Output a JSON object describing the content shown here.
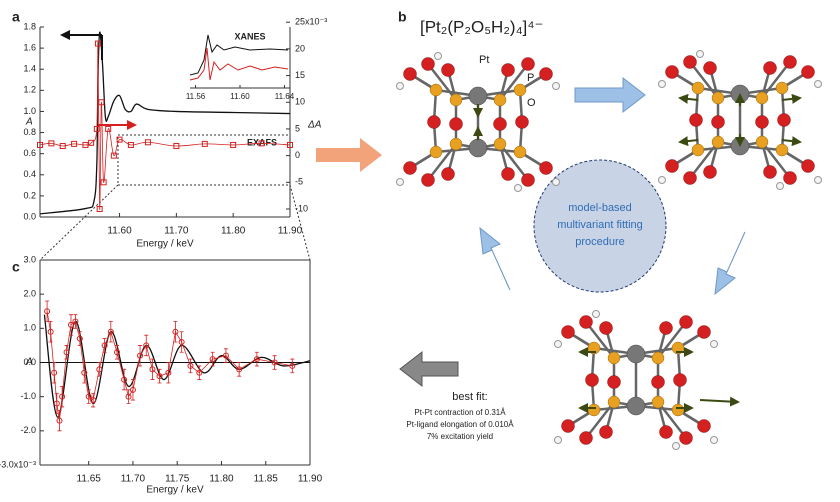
{
  "chart_data": [
    {
      "type": "line",
      "panel_label": "a",
      "x_label": "Energy / keV",
      "y_label": "A",
      "y2_label": "ΔA",
      "xlim": [
        11.46,
        11.9
      ],
      "xticks": [
        {
          "value": 11.6,
          "label": "11.60"
        },
        {
          "value": 11.7,
          "label": "11.70"
        },
        {
          "value": 11.8,
          "label": "11.80"
        },
        {
          "value": 11.9,
          "label": "11.90"
        }
      ],
      "ylim": [
        0,
        1.8
      ],
      "yticks": [
        {
          "value": 0,
          "label": "0.0"
        },
        0.2,
        0.4,
        0.6,
        0.8,
        {
          "value": 1,
          "label": "1.0"
        },
        1.2,
        1.4,
        1.6,
        1.8
      ],
      "y2lim": [
        -11.5,
        24.1
      ],
      "y2ticks": [
        -10,
        -5,
        0,
        5,
        10,
        15,
        20,
        {
          "value": 25,
          "label": "25x10⁻³"
        }
      ],
      "annotations": [
        "XANES",
        "EXAFS"
      ],
      "inset": {
        "xlim": [
          11.555,
          11.645
        ],
        "xticks": [
          {
            "value": 11.56,
            "label": "11.56"
          },
          {
            "value": 11.6,
            "label": "11.60"
          },
          {
            "value": 11.64,
            "label": "11.64"
          }
        ]
      },
      "series": [
        {
          "color": "#111111",
          "x": [
            11.46,
            11.54,
            11.555,
            11.56,
            11.562,
            11.565,
            11.57,
            11.575,
            11.58,
            11.59,
            11.6,
            11.61,
            11.62,
            11.63,
            11.65,
            11.7,
            11.8,
            11.9
          ],
          "values": [
            0.03,
            0.08,
            0.15,
            0.5,
            1.3,
            1.75,
            1.45,
            0.95,
            0.95,
            1.1,
            1.15,
            1.02,
            1.0,
            1.07,
            1.02,
            1.0,
            0.99,
            0.98
          ]
        },
        {
          "color": "#d62020",
          "axis": "y2",
          "marker": "square",
          "x": [
            11.46,
            11.48,
            11.5,
            11.52,
            11.54,
            11.55,
            11.56,
            11.562,
            11.565,
            11.568,
            11.572,
            11.58,
            11.59,
            11.6,
            11.62,
            11.65,
            11.7,
            11.75,
            11.8,
            11.85,
            11.9
          ],
          "values": [
            2,
            2.3,
            1.8,
            2.2,
            2,
            2.4,
            5,
            21,
            -10,
            10,
            -5,
            5,
            0,
            3,
            2,
            2.5,
            1.8,
            2.2,
            2,
            2.3,
            2
          ]
        }
      ]
    },
    {
      "type": "line",
      "panel_label": "c",
      "x_label": "Energy / keV",
      "y_label": "A",
      "xlim": [
        11.595,
        11.9
      ],
      "xticks": [
        11.65,
        {
          "value": 11.7,
          "label": "11.70"
        },
        11.75,
        {
          "value": 11.8,
          "label": "11.80"
        },
        11.85,
        {
          "value": 11.9,
          "label": "11.90"
        }
      ],
      "ylim": [
        -3,
        3
      ],
      "yticks": [
        {
          "value": -3,
          "label": "-3.0x10⁻³"
        },
        {
          "value": -2,
          "label": "-2.0"
        },
        {
          "value": -1,
          "label": "-1.0"
        },
        {
          "value": 0,
          "label": "0.0"
        },
        {
          "value": 1,
          "label": "1.0"
        },
        {
          "value": 2,
          "label": "2.0"
        },
        {
          "value": 3,
          "label": "3.0"
        }
      ],
      "series": [
        {
          "color": "#111111",
          "x": [
            11.6,
            11.615,
            11.635,
            11.655,
            11.675,
            11.695,
            11.715,
            11.735,
            11.755,
            11.78,
            11.8,
            11.82,
            11.845,
            11.87,
            11.9
          ],
          "values": [
            1.4,
            -1.6,
            1.2,
            -1.2,
            0.9,
            -0.7,
            0.5,
            -0.5,
            0.5,
            -0.3,
            0.2,
            -0.2,
            0.15,
            -0.1,
            0.05
          ]
        },
        {
          "color": "#d62020",
          "marker": "circle",
          "x": [
            11.603,
            11.607,
            11.611,
            11.614,
            11.617,
            11.62,
            11.625,
            11.63,
            11.635,
            11.64,
            11.645,
            11.65,
            11.655,
            11.662,
            11.668,
            11.675,
            11.682,
            11.69,
            11.695,
            11.7,
            11.708,
            11.715,
            11.722,
            11.73,
            11.74,
            11.748,
            11.755,
            11.765,
            11.775,
            11.79,
            11.805,
            11.82,
            11.84,
            11.86,
            11.88
          ],
          "values": [
            1.5,
            0.9,
            -0.3,
            -1.2,
            -1.7,
            -1.0,
            0.3,
            1.1,
            1.2,
            0.7,
            -0.3,
            -1.0,
            -1.1,
            -0.2,
            0.5,
            0.9,
            0.3,
            -0.5,
            -1.0,
            -0.8,
            0.2,
            0.5,
            -0.2,
            -0.4,
            -0.3,
            0.9,
            0.6,
            -0.1,
            -0.3,
            0.1,
            0.2,
            -0.2,
            0.1,
            0.0,
            -0.1
          ],
          "errors": [
            0.3,
            0.3,
            0.3,
            0.3,
            0.3,
            0.3,
            0.2,
            0.3,
            0.2,
            0.2,
            0.3,
            0.2,
            0.2,
            0.2,
            0.2,
            0.3,
            0.2,
            0.3,
            0.2,
            0.3,
            0.3,
            0.3,
            0.3,
            0.2,
            0.3,
            0.3,
            0.3,
            0.2,
            0.2,
            0.2,
            0.2,
            0.2,
            0.2,
            0.2,
            0.2
          ]
        }
      ]
    }
  ],
  "diagram": {
    "panel_label": "b",
    "title": "[Pt₂(P₂O₅H₂)₄]⁴⁻",
    "atom_labels": [
      "Pt",
      "P",
      "O"
    ],
    "circle_text": [
      "model-based",
      "multivariant fitting",
      "procedure"
    ],
    "best_fit": {
      "title": "best fit:",
      "lines": [
        "Pt-Pt contraction of 0.31Å",
        "Pt-ligand elongation of 0.010Å",
        "7% excitation yield"
      ]
    }
  }
}
